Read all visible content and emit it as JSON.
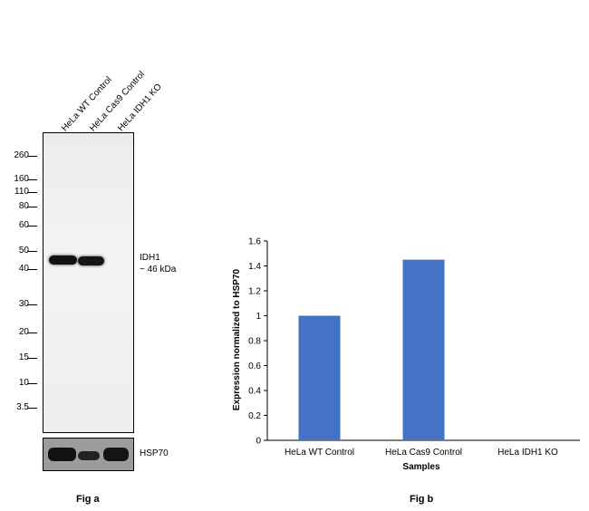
{
  "fig_a": {
    "caption": "Fig a",
    "lanes": [
      "HeLa WT Control",
      "HeLa Cas9 Control",
      "HeLa IDH1 KO"
    ],
    "markers": [
      "260",
      "160",
      "110",
      "80",
      "60",
      "50",
      "40",
      "30",
      "20",
      "15",
      "10",
      "3.5"
    ],
    "target_label": "IDH1",
    "target_size": "~ 46 kDa",
    "loading_control": "HSP70"
  },
  "fig_b": {
    "caption": "Fig b"
  },
  "chart_data": {
    "type": "bar",
    "categories": [
      "HeLa WT Control",
      "HeLa Cas9 Control",
      "HeLa IDH1 KO"
    ],
    "values": [
      1.0,
      1.45,
      0
    ],
    "xlabel": "Samples",
    "ylabel": "Expression normalized to HSP70",
    "ylim": [
      0,
      1.6
    ],
    "yticks": [
      "0",
      "0.2",
      "0.4",
      "0.6",
      "0.8",
      "1",
      "1.2",
      "1.4",
      "1.6"
    ],
    "grid": false,
    "bar_color": "#4472c4"
  }
}
